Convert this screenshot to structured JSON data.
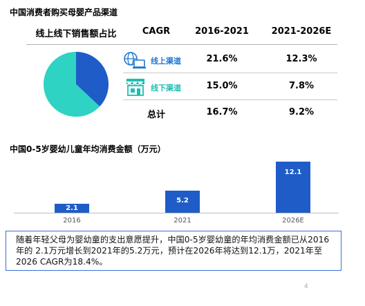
{
  "section1": {
    "title": "中国消费者购买母婴产品渠道",
    "headers": {
      "share": "线上线下销售额占比",
      "cagr": "CAGR",
      "period1": "2016-2021",
      "period2": "2021-2026E"
    },
    "rows": [
      {
        "label": "线上渠道",
        "icon": "online-channel-icon",
        "v1": "21.6%",
        "v2": "12.3%"
      },
      {
        "label": "线下渠道",
        "icon": "offline-store-icon",
        "v1": "15.0%",
        "v2": "7.8%"
      },
      {
        "label": "总计",
        "v1": "16.7%",
        "v2": "9.2%"
      }
    ]
  },
  "pie_data": {
    "type": "pie",
    "slices": [
      {
        "label": "线上渠道",
        "value": 37,
        "color": "#1f5cc8"
      },
      {
        "label": "线下渠道",
        "value": 63,
        "color": "#2fd3c3"
      }
    ]
  },
  "chart_data": {
    "type": "bar",
    "title": "中国0-5岁婴幼儿童年均消费金额（万元）",
    "categories": [
      "2016",
      "2021",
      "2026E"
    ],
    "values": [
      2.1,
      5.2,
      12.1
    ],
    "labels": [
      "2.1",
      "5.2",
      "12.1"
    ],
    "color": "#1f5cc8",
    "ylim": [
      0,
      12.1
    ],
    "grid": false
  },
  "note": {
    "text": "随着年轻父母为婴幼童的支出意愿提升，中国0-5岁婴幼童的年均消费金额已从2016年的 2.1万元增长到2021年的5.2万元，预计在2026年将达到12.1万，2021年至2026 CAGR为18.4%。"
  },
  "page_number": "4"
}
